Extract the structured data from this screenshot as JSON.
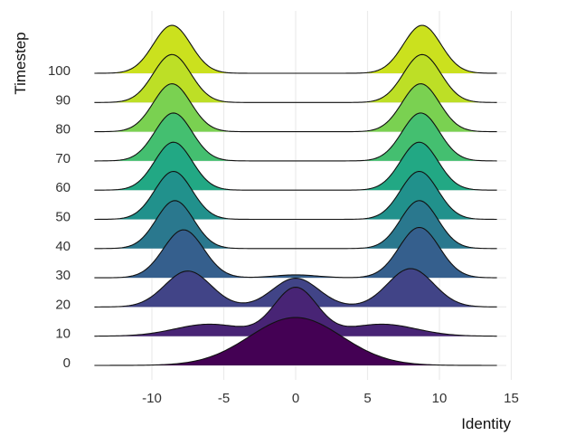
{
  "chart_data": {
    "type": "ridgeline",
    "xlabel": "Identity",
    "ylabel": "Timestep",
    "xlim": [
      -14,
      14
    ],
    "x_ticks": [
      -10,
      -5,
      0,
      5,
      10,
      15
    ],
    "grid": true,
    "series": [
      {
        "label": "0",
        "color": "#440154",
        "components": [
          {
            "mu": 0,
            "sigma": 3.2,
            "weight": 1.0
          }
        ]
      },
      {
        "label": "10",
        "color": "#482475",
        "components": [
          {
            "mu": 0,
            "sigma": 1.5,
            "weight": 1.0
          },
          {
            "mu": -6,
            "sigma": 2.4,
            "weight": 0.25
          },
          {
            "mu": 6,
            "sigma": 2.4,
            "weight": 0.25
          }
        ]
      },
      {
        "label": "20",
        "color": "#414487",
        "components": [
          {
            "mu": -7.5,
            "sigma": 1.6,
            "weight": 0.75
          },
          {
            "mu": 0,
            "sigma": 1.6,
            "weight": 0.6
          },
          {
            "mu": 8,
            "sigma": 1.6,
            "weight": 0.8
          }
        ]
      },
      {
        "label": "30",
        "color": "#355f8d",
        "components": [
          {
            "mu": -7.8,
            "sigma": 1.4,
            "weight": 1.0
          },
          {
            "mu": 0,
            "sigma": 1.5,
            "weight": 0.06
          },
          {
            "mu": 8.6,
            "sigma": 1.4,
            "weight": 1.05
          }
        ]
      },
      {
        "label": "40",
        "color": "#2a788e",
        "components": [
          {
            "mu": -8.4,
            "sigma": 1.3,
            "weight": 1.0
          },
          {
            "mu": 8.6,
            "sigma": 1.3,
            "weight": 1.0
          }
        ]
      },
      {
        "label": "50",
        "color": "#21918c",
        "components": [
          {
            "mu": -8.5,
            "sigma": 1.3,
            "weight": 1.0
          },
          {
            "mu": 8.6,
            "sigma": 1.3,
            "weight": 1.0
          }
        ]
      },
      {
        "label": "60",
        "color": "#22a884",
        "components": [
          {
            "mu": -8.5,
            "sigma": 1.3,
            "weight": 1.0
          },
          {
            "mu": 8.6,
            "sigma": 1.3,
            "weight": 1.0
          }
        ]
      },
      {
        "label": "70",
        "color": "#44bf70",
        "components": [
          {
            "mu": -8.5,
            "sigma": 1.3,
            "weight": 1.0
          },
          {
            "mu": 8.7,
            "sigma": 1.3,
            "weight": 1.0
          }
        ]
      },
      {
        "label": "80",
        "color": "#7ad151",
        "components": [
          {
            "mu": -8.6,
            "sigma": 1.3,
            "weight": 1.0
          },
          {
            "mu": 8.7,
            "sigma": 1.3,
            "weight": 1.0
          }
        ]
      },
      {
        "label": "90",
        "color": "#bddf26",
        "components": [
          {
            "mu": -8.6,
            "sigma": 1.3,
            "weight": 1.0
          },
          {
            "mu": 8.8,
            "sigma": 1.3,
            "weight": 1.0
          }
        ]
      },
      {
        "label": "100",
        "color": "#cbe11e",
        "components": [
          {
            "mu": -8.6,
            "sigma": 1.3,
            "weight": 1.0
          },
          {
            "mu": 8.8,
            "sigma": 1.3,
            "weight": 1.0
          }
        ]
      }
    ]
  }
}
